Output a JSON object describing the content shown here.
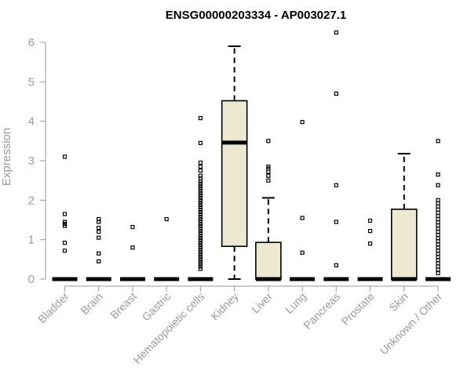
{
  "chart_data": {
    "type": "boxplot",
    "title": "ENSG00000203334 - AP003027.1",
    "ylabel": "Expression",
    "ylim": [
      0,
      6
    ],
    "yticks": [
      0,
      1,
      2,
      3,
      4,
      5,
      6
    ],
    "box_fill": "#ede8d0",
    "categories": [
      "Bladder",
      "Brain",
      "Breast",
      "Gastric",
      "Hematopoietic cells",
      "Kidney",
      "Liver",
      "Lung",
      "Pancreas",
      "Prostate",
      "Skin",
      "Unknown / Other"
    ],
    "boxes": [
      {
        "name": "Bladder",
        "q1": 0,
        "median": 0,
        "q3": 0,
        "whisker_low": 0,
        "whisker_high": 0,
        "outliers": [
          3.1,
          1.65,
          1.45,
          1.4,
          1.35,
          0.92,
          0.72
        ]
      },
      {
        "name": "Brain",
        "q1": 0,
        "median": 0,
        "q3": 0,
        "whisker_low": 0,
        "whisker_high": 0,
        "outliers": [
          1.52,
          1.45,
          1.3,
          1.2,
          1.05,
          0.65,
          0.45
        ]
      },
      {
        "name": "Breast",
        "q1": 0,
        "median": 0,
        "q3": 0,
        "whisker_low": 0,
        "whisker_high": 0,
        "outliers": [
          1.32,
          0.8
        ]
      },
      {
        "name": "Gastric",
        "q1": 0,
        "median": 0,
        "q3": 0,
        "whisker_low": 0,
        "whisker_high": 0,
        "outliers": [
          1.52
        ]
      },
      {
        "name": "Hematopoietic cells",
        "q1": 0,
        "median": 0,
        "q3": 0,
        "whisker_low": 0,
        "whisker_high": 0,
        "outliers": [
          4.08,
          3.45,
          2.95,
          2.85,
          2.75,
          2.62,
          2.55,
          2.48,
          2.42,
          2.36,
          2.3,
          2.24,
          2.18,
          2.12,
          2.06,
          2.0,
          1.94,
          1.88,
          1.82,
          1.76,
          1.7,
          1.64,
          1.58,
          1.52,
          1.46,
          1.4,
          1.34,
          1.28,
          1.22,
          1.16,
          1.1,
          1.04,
          0.98,
          0.92,
          0.86,
          0.8,
          0.74,
          0.68,
          0.62,
          0.56,
          0.5,
          0.44,
          0.38,
          0.32,
          0.26
        ]
      },
      {
        "name": "Kidney",
        "q1": 0.83,
        "median": 3.46,
        "q3": 4.52,
        "whisker_low": 0,
        "whisker_high": 5.9,
        "outliers": []
      },
      {
        "name": "Liver",
        "q1": 0,
        "median": 0,
        "q3": 0.93,
        "whisker_low": 0,
        "whisker_high": 2.06,
        "outliers": [
          3.5,
          2.85,
          2.8,
          2.72,
          2.62,
          2.5
        ]
      },
      {
        "name": "Lung",
        "q1": 0,
        "median": 0,
        "q3": 0,
        "whisker_low": 0,
        "whisker_high": 0,
        "outliers": [
          3.98,
          1.55,
          0.67
        ]
      },
      {
        "name": "Pancreas",
        "q1": 0,
        "median": 0,
        "q3": 0,
        "whisker_low": 0,
        "whisker_high": 0,
        "outliers": [
          6.25,
          4.7,
          2.38,
          1.45,
          0.35
        ]
      },
      {
        "name": "Prostate",
        "q1": 0,
        "median": 0,
        "q3": 0,
        "whisker_low": 0,
        "whisker_high": 0,
        "outliers": [
          1.48,
          1.22,
          0.9
        ]
      },
      {
        "name": "Skin",
        "q1": 0,
        "median": 0,
        "q3": 1.77,
        "whisker_low": 0,
        "whisker_high": 3.18,
        "outliers": []
      },
      {
        "name": "Unknown / Other",
        "q1": 0,
        "median": 0,
        "q3": 0,
        "whisker_low": 0,
        "whisker_high": 0,
        "outliers": [
          3.5,
          2.65,
          2.38,
          2.0,
          1.92,
          1.84,
          1.76,
          1.68,
          1.6,
          1.52,
          1.44,
          1.36,
          1.28,
          1.2,
          1.12,
          1.04,
          0.96,
          0.88,
          0.8,
          0.72,
          0.64,
          0.56,
          0.48,
          0.4,
          0.32,
          0.24,
          0.15
        ]
      }
    ]
  }
}
